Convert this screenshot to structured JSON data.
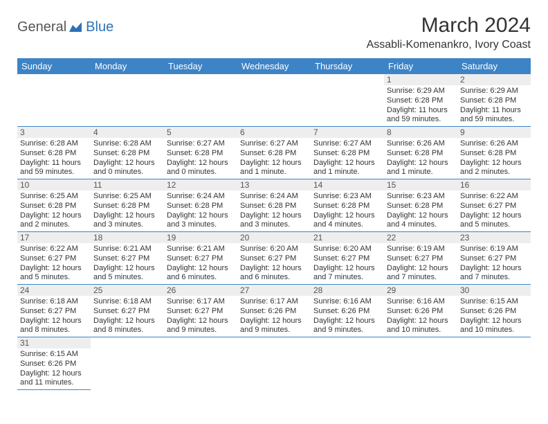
{
  "logo": {
    "general": "General",
    "blue": "Blue"
  },
  "title": "March 2024",
  "location": "Assabli-Komenankro, Ivory Coast",
  "colors": {
    "header_bg": "#3d84c6",
    "header_text": "#ffffff",
    "daynum_bg": "#eeeeee",
    "border": "#3d84c6",
    "logo_blue": "#2d72b8"
  },
  "daysOfWeek": [
    "Sunday",
    "Monday",
    "Tuesday",
    "Wednesday",
    "Thursday",
    "Friday",
    "Saturday"
  ],
  "weeks": [
    [
      null,
      null,
      null,
      null,
      null,
      {
        "n": "1",
        "sr": "Sunrise: 6:29 AM",
        "ss": "Sunset: 6:28 PM",
        "d1": "Daylight: 11 hours",
        "d2": "and 59 minutes."
      },
      {
        "n": "2",
        "sr": "Sunrise: 6:29 AM",
        "ss": "Sunset: 6:28 PM",
        "d1": "Daylight: 11 hours",
        "d2": "and 59 minutes."
      }
    ],
    [
      {
        "n": "3",
        "sr": "Sunrise: 6:28 AM",
        "ss": "Sunset: 6:28 PM",
        "d1": "Daylight: 11 hours",
        "d2": "and 59 minutes."
      },
      {
        "n": "4",
        "sr": "Sunrise: 6:28 AM",
        "ss": "Sunset: 6:28 PM",
        "d1": "Daylight: 12 hours",
        "d2": "and 0 minutes."
      },
      {
        "n": "5",
        "sr": "Sunrise: 6:27 AM",
        "ss": "Sunset: 6:28 PM",
        "d1": "Daylight: 12 hours",
        "d2": "and 0 minutes."
      },
      {
        "n": "6",
        "sr": "Sunrise: 6:27 AM",
        "ss": "Sunset: 6:28 PM",
        "d1": "Daylight: 12 hours",
        "d2": "and 1 minute."
      },
      {
        "n": "7",
        "sr": "Sunrise: 6:27 AM",
        "ss": "Sunset: 6:28 PM",
        "d1": "Daylight: 12 hours",
        "d2": "and 1 minute."
      },
      {
        "n": "8",
        "sr": "Sunrise: 6:26 AM",
        "ss": "Sunset: 6:28 PM",
        "d1": "Daylight: 12 hours",
        "d2": "and 1 minute."
      },
      {
        "n": "9",
        "sr": "Sunrise: 6:26 AM",
        "ss": "Sunset: 6:28 PM",
        "d1": "Daylight: 12 hours",
        "d2": "and 2 minutes."
      }
    ],
    [
      {
        "n": "10",
        "sr": "Sunrise: 6:25 AM",
        "ss": "Sunset: 6:28 PM",
        "d1": "Daylight: 12 hours",
        "d2": "and 2 minutes."
      },
      {
        "n": "11",
        "sr": "Sunrise: 6:25 AM",
        "ss": "Sunset: 6:28 PM",
        "d1": "Daylight: 12 hours",
        "d2": "and 3 minutes."
      },
      {
        "n": "12",
        "sr": "Sunrise: 6:24 AM",
        "ss": "Sunset: 6:28 PM",
        "d1": "Daylight: 12 hours",
        "d2": "and 3 minutes."
      },
      {
        "n": "13",
        "sr": "Sunrise: 6:24 AM",
        "ss": "Sunset: 6:28 PM",
        "d1": "Daylight: 12 hours",
        "d2": "and 3 minutes."
      },
      {
        "n": "14",
        "sr": "Sunrise: 6:23 AM",
        "ss": "Sunset: 6:28 PM",
        "d1": "Daylight: 12 hours",
        "d2": "and 4 minutes."
      },
      {
        "n": "15",
        "sr": "Sunrise: 6:23 AM",
        "ss": "Sunset: 6:28 PM",
        "d1": "Daylight: 12 hours",
        "d2": "and 4 minutes."
      },
      {
        "n": "16",
        "sr": "Sunrise: 6:22 AM",
        "ss": "Sunset: 6:27 PM",
        "d1": "Daylight: 12 hours",
        "d2": "and 5 minutes."
      }
    ],
    [
      {
        "n": "17",
        "sr": "Sunrise: 6:22 AM",
        "ss": "Sunset: 6:27 PM",
        "d1": "Daylight: 12 hours",
        "d2": "and 5 minutes."
      },
      {
        "n": "18",
        "sr": "Sunrise: 6:21 AM",
        "ss": "Sunset: 6:27 PM",
        "d1": "Daylight: 12 hours",
        "d2": "and 5 minutes."
      },
      {
        "n": "19",
        "sr": "Sunrise: 6:21 AM",
        "ss": "Sunset: 6:27 PM",
        "d1": "Daylight: 12 hours",
        "d2": "and 6 minutes."
      },
      {
        "n": "20",
        "sr": "Sunrise: 6:20 AM",
        "ss": "Sunset: 6:27 PM",
        "d1": "Daylight: 12 hours",
        "d2": "and 6 minutes."
      },
      {
        "n": "21",
        "sr": "Sunrise: 6:20 AM",
        "ss": "Sunset: 6:27 PM",
        "d1": "Daylight: 12 hours",
        "d2": "and 7 minutes."
      },
      {
        "n": "22",
        "sr": "Sunrise: 6:19 AM",
        "ss": "Sunset: 6:27 PM",
        "d1": "Daylight: 12 hours",
        "d2": "and 7 minutes."
      },
      {
        "n": "23",
        "sr": "Sunrise: 6:19 AM",
        "ss": "Sunset: 6:27 PM",
        "d1": "Daylight: 12 hours",
        "d2": "and 7 minutes."
      }
    ],
    [
      {
        "n": "24",
        "sr": "Sunrise: 6:18 AM",
        "ss": "Sunset: 6:27 PM",
        "d1": "Daylight: 12 hours",
        "d2": "and 8 minutes."
      },
      {
        "n": "25",
        "sr": "Sunrise: 6:18 AM",
        "ss": "Sunset: 6:27 PM",
        "d1": "Daylight: 12 hours",
        "d2": "and 8 minutes."
      },
      {
        "n": "26",
        "sr": "Sunrise: 6:17 AM",
        "ss": "Sunset: 6:27 PM",
        "d1": "Daylight: 12 hours",
        "d2": "and 9 minutes."
      },
      {
        "n": "27",
        "sr": "Sunrise: 6:17 AM",
        "ss": "Sunset: 6:26 PM",
        "d1": "Daylight: 12 hours",
        "d2": "and 9 minutes."
      },
      {
        "n": "28",
        "sr": "Sunrise: 6:16 AM",
        "ss": "Sunset: 6:26 PM",
        "d1": "Daylight: 12 hours",
        "d2": "and 9 minutes."
      },
      {
        "n": "29",
        "sr": "Sunrise: 6:16 AM",
        "ss": "Sunset: 6:26 PM",
        "d1": "Daylight: 12 hours",
        "d2": "and 10 minutes."
      },
      {
        "n": "30",
        "sr": "Sunrise: 6:15 AM",
        "ss": "Sunset: 6:26 PM",
        "d1": "Daylight: 12 hours",
        "d2": "and 10 minutes."
      }
    ],
    [
      {
        "n": "31",
        "sr": "Sunrise: 6:15 AM",
        "ss": "Sunset: 6:26 PM",
        "d1": "Daylight: 12 hours",
        "d2": "and 11 minutes."
      },
      null,
      null,
      null,
      null,
      null,
      null
    ]
  ]
}
